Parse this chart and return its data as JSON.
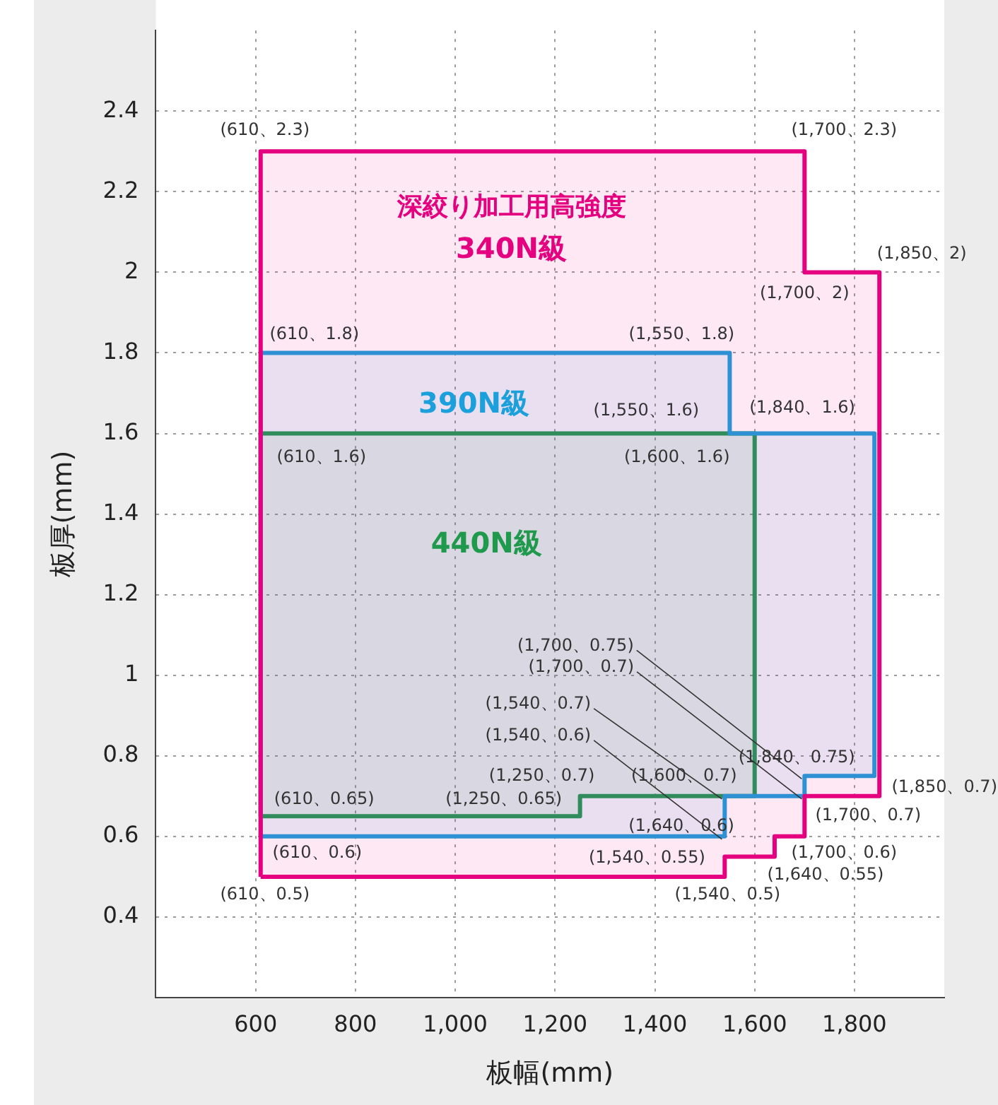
{
  "chart_data": {
    "type": "area",
    "xlabel": "板幅(mm)",
    "ylabel": "板厚(mm)",
    "xlim": [
      400,
      1980
    ],
    "ylim": [
      0.2,
      2.6
    ],
    "xticks": [
      600,
      {
        "value": 800,
        "label": "800"
      },
      {
        "value": 1000,
        "label": "1,000"
      },
      {
        "value": 1200,
        "label": "1,200"
      },
      {
        "value": 1400,
        "label": "1,400"
      },
      {
        "value": 1600,
        "label": "1,600"
      },
      {
        "value": 1800,
        "label": "1,800"
      }
    ],
    "yticks": [
      0.4,
      0.6,
      0.8,
      1,
      1.2,
      1.4,
      1.6,
      1.8,
      2,
      2.2,
      2.4
    ],
    "grid": true,
    "legend": false,
    "marker": "none",
    "line_style": "solid",
    "series": [
      {
        "name": "深絞り加工用高強度\n340N級",
        "color": "#e4007f",
        "x": [
          610,
          610,
          1700,
          1700,
          1850,
          1850,
          1700,
          1700,
          1640,
          1640,
          1540,
          1540,
          610
        ],
        "values": [
          0.5,
          2.3,
          2.3,
          2,
          2,
          0.7,
          0.7,
          0.6,
          0.6,
          0.55,
          0.55,
          0.5,
          0.5
        ]
      },
      {
        "name": "390N級",
        "color": "#1ca0dc",
        "x": [
          610,
          610,
          1550,
          1550,
          1840,
          1840,
          1700,
          1700,
          1540,
          1540,
          610
        ],
        "values": [
          0.6,
          1.8,
          1.8,
          1.6,
          1.6,
          0.75,
          0.75,
          0.7,
          0.7,
          0.6,
          0.6
        ]
      },
      {
        "name": "440N級",
        "color": "#1f9a4c",
        "x": [
          610,
          610,
          1600,
          1600,
          1250,
          1250,
          610
        ],
        "values": [
          0.65,
          1.6,
          1.6,
          0.7,
          0.7,
          0.65,
          0.65
        ]
      }
    ],
    "annotations": [
      {
        "text": "(610、2.3)",
        "x": 610,
        "y": 2.3
      },
      {
        "text": "(1,700、2.3)",
        "x": 1700,
        "y": 2.3
      },
      {
        "text": "(1,850、2)",
        "x": 1850,
        "y": 2
      },
      {
        "text": "(1,700、2)",
        "x": 1700,
        "y": 2
      },
      {
        "text": "(1,850、0.7)",
        "x": 1850,
        "y": 0.7
      },
      {
        "text": "(1,700、0.7)",
        "x": 1700,
        "y": 0.7
      },
      {
        "text": "(1,700、0.6)",
        "x": 1700,
        "y": 0.6
      },
      {
        "text": "(1,640、0.55)",
        "x": 1640,
        "y": 0.55
      },
      {
        "text": "(1,540、0.5)",
        "x": 1540,
        "y": 0.5
      },
      {
        "text": "(1,540、0.55)",
        "x": 1540,
        "y": 0.55
      },
      {
        "text": "(1,640、0.6)",
        "x": 1640,
        "y": 0.6
      },
      {
        "text": "(610、0.5)",
        "x": 610,
        "y": 0.5
      },
      {
        "text": "(610、1.8)",
        "x": 610,
        "y": 1.8
      },
      {
        "text": "(1,550、1.8)",
        "x": 1550,
        "y": 1.8
      },
      {
        "text": "(1,550、1.6)",
        "x": 1550,
        "y": 1.6
      },
      {
        "text": "(1,840、1.6)",
        "x": 1840,
        "y": 1.6
      },
      {
        "text": "(1,840、0.75)",
        "x": 1840,
        "y": 0.75
      },
      {
        "text": "(1,700、0.75)",
        "x": 1700,
        "y": 0.75
      },
      {
        "text": "(1,700、0.7)",
        "x": 1700,
        "y": 0.7
      },
      {
        "text": "(1,540、0.7)",
        "x": 1540,
        "y": 0.7
      },
      {
        "text": "(1,540、0.6)",
        "x": 1540,
        "y": 0.6
      },
      {
        "text": "(610、0.6)",
        "x": 610,
        "y": 0.6
      },
      {
        "text": "(610、1.6)",
        "x": 610,
        "y": 1.6
      },
      {
        "text": "(1,600、1.6)",
        "x": 1600,
        "y": 1.6
      },
      {
        "text": "(1,600、0.7)",
        "x": 1600,
        "y": 0.7
      },
      {
        "text": "(1,250、0.7)",
        "x": 1250,
        "y": 0.7
      },
      {
        "text": "(1,250、0.65)",
        "x": 1250,
        "y": 0.65
      },
      {
        "text": "(610、0.65)",
        "x": 610,
        "y": 0.65
      }
    ]
  }
}
